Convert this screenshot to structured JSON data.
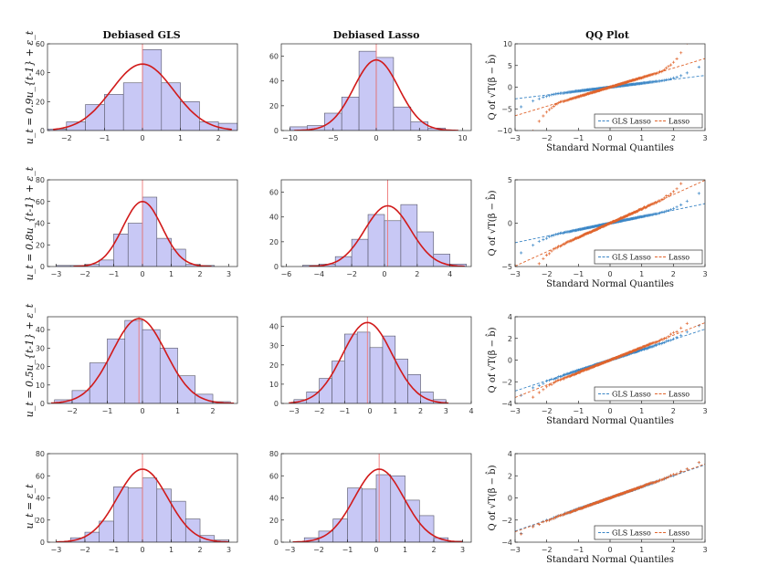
{
  "column_titles": [
    "Debiased GLS",
    "Debiased Lasso",
    "QQ Plot"
  ],
  "row_labels": [
    "u_t = 0.9u_{t-1} + ε_t",
    "u_t = 0.8u_{t-1} + ε_t",
    "u_t = 0.5u_{t-1} + ε_t",
    "u_t = ε_t"
  ],
  "colors": {
    "bar_fill": "#c8c8f5",
    "bar_edge": "#555566",
    "normal_curve": "#d11a1a",
    "center_line": "#ee7777",
    "gls_series": "#3b86c6",
    "lasso_series": "#e0642c"
  },
  "chart_data": [
    {
      "type": "bar",
      "panel": "hist-gls-r1",
      "row": 0,
      "col": 0,
      "title": "Debiased GLS",
      "ylabel": "u_t = 0.9u_{t-1} + ε_t",
      "bin_edges": [
        -2.5,
        -2,
        -1.5,
        -1,
        -0.5,
        0,
        0.5,
        1,
        1.5,
        2,
        2.5
      ],
      "values": [
        1,
        6,
        18,
        25,
        33,
        56,
        33,
        20,
        6,
        5
      ],
      "xlim": [
        -2.5,
        2.5
      ],
      "ylim": [
        0,
        60
      ],
      "xticks": [
        -2,
        -1,
        0,
        1,
        2
      ],
      "yticks": [
        0,
        20,
        40,
        60
      ],
      "curve": {
        "mean": 0,
        "sd": 0.82,
        "peak": 46,
        "range": [
          -2.35,
          2.35
        ]
      },
      "center": 0
    },
    {
      "type": "bar",
      "panel": "hist-lasso-r1",
      "row": 0,
      "col": 1,
      "title": "Debiased Lasso",
      "bin_edges": [
        -10,
        -8,
        -6,
        -4,
        -2,
        0,
        2,
        4,
        6,
        8,
        10
      ],
      "values": [
        3,
        4,
        14,
        27,
        64,
        59,
        19,
        7,
        2,
        0
      ],
      "xlim": [
        -11,
        11
      ],
      "ylim": [
        0,
        70
      ],
      "xticks": [
        -10,
        -5,
        0,
        5,
        10
      ],
      "yticks": [
        0,
        20,
        40,
        60
      ],
      "curve": {
        "mean": 0,
        "sd": 2.6,
        "peak": 57,
        "range": [
          -9.5,
          9.5
        ]
      },
      "center": 0
    },
    {
      "type": "scatter",
      "panel": "qq-r1",
      "row": 0,
      "col": 2,
      "title": "QQ Plot",
      "xlabel": "Standard Normal Quantiles",
      "ylabel": "Q of √T(β − b̂)",
      "xlim": [
        -3,
        3
      ],
      "ylim": [
        -10,
        10
      ],
      "xticks": [
        -3,
        -2,
        -1,
        0,
        1,
        2,
        3
      ],
      "yticks": [
        -10,
        -5,
        0,
        5,
        10
      ],
      "series": [
        {
          "name": "GLS Lasso",
          "slope": 0.9,
          "tail": 1.2,
          "color_key": "gls_series"
        },
        {
          "name": "Lasso",
          "slope": 2.2,
          "tail": 5.5,
          "color_key": "lasso_series"
        }
      ],
      "legend": "bottom-right"
    },
    {
      "type": "bar",
      "panel": "hist-gls-r2",
      "row": 1,
      "col": 0,
      "ylabel": "u_t = 0.8u_{t-1} + ε_t",
      "bin_edges": [
        -3,
        -2.5,
        -2,
        -1.5,
        -1,
        -0.5,
        0,
        0.5,
        1,
        1.5,
        2,
        2.5,
        3
      ],
      "values": [
        1,
        1,
        2,
        6,
        30,
        40,
        64,
        26,
        16,
        2,
        1,
        0
      ],
      "xlim": [
        -3.3,
        3.3
      ],
      "ylim": [
        0,
        80
      ],
      "xticks": [
        -3,
        -2,
        -1,
        0,
        1,
        2,
        3
      ],
      "yticks": [
        0,
        20,
        40,
        60,
        80
      ],
      "curve": {
        "mean": 0,
        "sd": 0.68,
        "peak": 60,
        "range": [
          -2.4,
          2.4
        ]
      },
      "center": 0
    },
    {
      "type": "bar",
      "panel": "hist-lasso-r2",
      "row": 1,
      "col": 1,
      "bin_edges": [
        -5,
        -4,
        -3,
        -2,
        -1,
        0,
        1,
        2,
        3,
        4,
        5
      ],
      "values": [
        1,
        2,
        8,
        22,
        42,
        37,
        50,
        28,
        10,
        2
      ],
      "xlim": [
        -6.3,
        5.3
      ],
      "ylim": [
        0,
        70
      ],
      "xticks": [
        -6,
        -4,
        -2,
        0,
        2,
        4
      ],
      "yticks": [
        0,
        20,
        40,
        60
      ],
      "curve": {
        "mean": 0.2,
        "sd": 1.4,
        "peak": 49,
        "range": [
          -4.6,
          4.9
        ]
      },
      "center": 0.2
    },
    {
      "type": "scatter",
      "panel": "qq-r2",
      "row": 1,
      "col": 2,
      "xlabel": "Standard Normal Quantiles",
      "ylabel": "Q of √T(β − b̂)",
      "xlim": [
        -3,
        3
      ],
      "ylim": [
        -5,
        5
      ],
      "xticks": [
        -3,
        -2,
        -1,
        0,
        1,
        2,
        3
      ],
      "yticks": [
        -5,
        0,
        5
      ],
      "series": [
        {
          "name": "GLS Lasso",
          "slope": 0.75,
          "tail": 0.8,
          "color_key": "gls_series"
        },
        {
          "name": "Lasso",
          "slope": 1.65,
          "tail": 1.6,
          "color_key": "lasso_series"
        }
      ],
      "legend": "bottom-right"
    },
    {
      "type": "bar",
      "panel": "hist-gls-r3",
      "row": 2,
      "col": 0,
      "ylabel": "u_t = 0.5u_{t-1} + ε_t",
      "bin_edges": [
        -2.5,
        -2,
        -1.5,
        -1,
        -0.5,
        0,
        0.5,
        1,
        1.5,
        2,
        2.5
      ],
      "values": [
        2,
        7,
        22,
        35,
        45,
        40,
        30,
        15,
        5,
        1
      ],
      "xlim": [
        -2.7,
        2.7
      ],
      "ylim": [
        0,
        47
      ],
      "xticks": [
        -2,
        -1,
        0,
        1,
        2
      ],
      "yticks": [
        0,
        10,
        20,
        30,
        40
      ],
      "curve": {
        "mean": -0.1,
        "sd": 0.76,
        "peak": 46,
        "range": [
          -2.6,
          2.6
        ]
      },
      "center": -0.1
    },
    {
      "type": "bar",
      "panel": "hist-lasso-r3",
      "row": 2,
      "col": 1,
      "bin_edges": [
        -3,
        -2.5,
        -2,
        -1.5,
        -1,
        -0.5,
        0,
        0.5,
        1,
        1.5,
        2,
        2.5,
        3
      ],
      "values": [
        2,
        6,
        13,
        22,
        36,
        37,
        29,
        35,
        23,
        15,
        6,
        2
      ],
      "xlim": [
        -3.5,
        4
      ],
      "ylim": [
        0,
        45
      ],
      "xticks": [
        -3,
        -2,
        -1,
        0,
        1,
        2,
        3,
        4
      ],
      "yticks": [
        0,
        10,
        20,
        30,
        40
      ],
      "curve": {
        "mean": -0.1,
        "sd": 0.98,
        "peak": 42,
        "range": [
          -3.2,
          3.1
        ]
      },
      "center": -0.1
    },
    {
      "type": "scatter",
      "panel": "qq-r3",
      "row": 2,
      "col": 2,
      "xlabel": "Standard Normal Quantiles",
      "ylabel": "Q of √T(β − b̂)",
      "xlim": [
        -3,
        3
      ],
      "ylim": [
        -4,
        4
      ],
      "xticks": [
        -3,
        -2,
        -1,
        0,
        1,
        2,
        3
      ],
      "yticks": [
        -4,
        -2,
        0,
        2,
        4
      ],
      "series": [
        {
          "name": "GLS Lasso",
          "slope": 0.95,
          "tail": 0.3,
          "color_key": "gls_series"
        },
        {
          "name": "Lasso",
          "slope": 1.15,
          "tail": 0.7,
          "color_key": "lasso_series"
        }
      ],
      "legend": "bottom-right"
    },
    {
      "type": "bar",
      "panel": "hist-gls-r4",
      "row": 3,
      "col": 0,
      "ylabel": "u_t = ε_t",
      "bin_edges": [
        -3,
        -2.5,
        -2,
        -1.5,
        -1,
        -0.5,
        0,
        0.5,
        1,
        1.5,
        2,
        2.5,
        3
      ],
      "values": [
        0,
        4,
        9,
        19,
        50,
        49,
        58,
        48,
        37,
        21,
        6,
        2
      ],
      "xlim": [
        -3.3,
        3.3
      ],
      "ylim": [
        0,
        80
      ],
      "xticks": [
        -3,
        -2,
        -1,
        0,
        1,
        2,
        3
      ],
      "yticks": [
        0,
        20,
        40,
        60,
        80
      ],
      "curve": {
        "mean": 0,
        "sd": 0.88,
        "peak": 66,
        "range": [
          -3.0,
          3.0
        ]
      },
      "center": 0
    },
    {
      "type": "bar",
      "panel": "hist-lasso-r4",
      "row": 3,
      "col": 1,
      "bin_edges": [
        -3,
        -2.5,
        -2,
        -1.5,
        -1,
        -0.5,
        0,
        0.5,
        1,
        1.5,
        2,
        2.5,
        3
      ],
      "values": [
        0,
        4,
        10,
        21,
        49,
        48,
        61,
        60,
        38,
        24,
        4,
        1
      ],
      "xlim": [
        -3.3,
        3.3
      ],
      "ylim": [
        0,
        80
      ],
      "xticks": [
        -3,
        -2,
        -1,
        0,
        1,
        2,
        3
      ],
      "yticks": [
        0,
        20,
        40,
        60,
        80
      ],
      "curve": {
        "mean": 0.1,
        "sd": 0.86,
        "peak": 66,
        "range": [
          -2.9,
          3.0
        ]
      },
      "center": 0.1
    },
    {
      "type": "scatter",
      "panel": "qq-r4",
      "row": 3,
      "col": 2,
      "xlabel": "Standard Normal Quantiles",
      "ylabel": "Q of √T(β − b̂)",
      "xlim": [
        -3,
        3
      ],
      "ylim": [
        -4,
        4
      ],
      "xticks": [
        -3,
        -2,
        -1,
        0,
        1,
        2,
        3
      ],
      "yticks": [
        -4,
        -2,
        0,
        2,
        4
      ],
      "series": [
        {
          "name": "GLS Lasso",
          "slope": 1.0,
          "tail": 0.2,
          "color_key": "gls_series"
        },
        {
          "name": "Lasso",
          "slope": 1.02,
          "tail": 0.2,
          "color_key": "lasso_series"
        }
      ],
      "legend": "bottom-right"
    }
  ]
}
